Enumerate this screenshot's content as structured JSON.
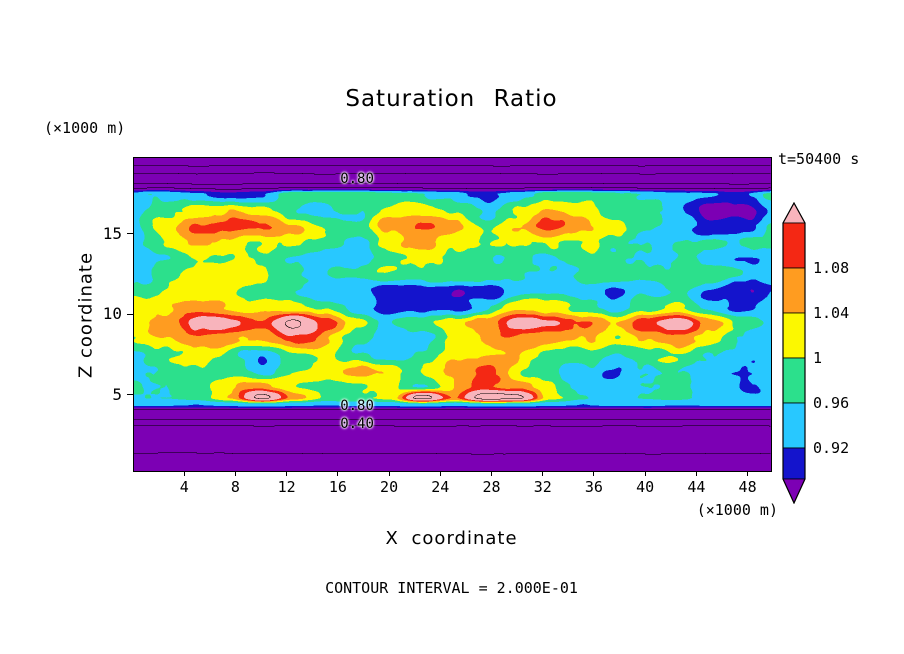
{
  "title": "Saturation Ratio",
  "labels": {
    "z_units": "(×1000 m)",
    "x_units": "(×1000 m)",
    "time": "t=50400 s",
    "x_axis": "X coordinate",
    "z_axis": "Z coordinate",
    "contour_interval": "CONTOUR INTERVAL = 2.000E-01"
  },
  "axes": {
    "x_ticks": [
      4,
      8,
      12,
      16,
      20,
      24,
      28,
      32,
      36,
      40,
      44,
      48
    ],
    "z_ticks": [
      5,
      10,
      15
    ],
    "x_range": [
      0,
      49.75
    ],
    "z_range": [
      0.35,
      19.75
    ]
  },
  "colorbar": {
    "tick_labels": [
      "1.08",
      "1.04",
      "1",
      "0.96",
      "0.92"
    ]
  },
  "contour_labels": [
    {
      "text": "0.80",
      "x": 17.5,
      "z": 18.4
    },
    {
      "text": "0.80",
      "x": 17.5,
      "z": 4.3
    },
    {
      "text": "0.40",
      "x": 17.5,
      "z": 3.2
    }
  ],
  "chart_data": {
    "type": "heatmap",
    "title": "Saturation Ratio",
    "xlabel": "X coordinate (×1000 m)",
    "ylabel": "Z coordinate (×1000 m)",
    "time": "t=50400 s",
    "contour_interval": 0.2,
    "fill_levels": [
      0.88,
      0.92,
      0.96,
      1.0,
      1.04,
      1.08,
      1.12
    ],
    "fill_colors": [
      "#7c00b4",
      "#1414cc",
      "#28c8ff",
      "#2ce08c",
      "#fcf800",
      "#ff9c20",
      "#f42814",
      "#f8b4bc"
    ],
    "line_contour_levels": [
      0.2,
      0.4,
      0.6,
      0.8,
      1.2
    ],
    "x": [
      0,
      2.5,
      5,
      7.5,
      10,
      12.5,
      15,
      17.5,
      20,
      22.5,
      25,
      27.5,
      30,
      32.5,
      35,
      37.5,
      40,
      42.5,
      45,
      47.5,
      50
    ],
    "z": [
      19.6,
      18.5,
      17.5,
      16.5,
      15.5,
      14.5,
      13.5,
      12.5,
      11.5,
      10.5,
      9.5,
      8.5,
      7.5,
      6.5,
      5.6,
      4.9,
      4.45,
      3.9,
      3.0,
      1.8,
      0.4
    ],
    "values": [
      [
        0.12,
        0.12,
        0.12,
        0.12,
        0.12,
        0.12,
        0.12,
        0.12,
        0.12,
        0.12,
        0.12,
        0.12,
        0.12,
        0.12,
        0.12,
        0.12,
        0.12,
        0.12,
        0.12,
        0.12,
        0.12
      ],
      [
        0.45,
        0.46,
        0.44,
        0.45,
        0.47,
        0.45,
        0.43,
        0.45,
        0.46,
        0.44,
        0.45,
        0.46,
        0.45,
        0.44,
        0.46,
        0.45,
        0.44,
        0.45,
        0.46,
        0.45,
        0.45
      ],
      [
        0.96,
        0.97,
        0.93,
        0.9,
        0.92,
        0.97,
        0.98,
        0.97,
        0.96,
        0.97,
        0.95,
        0.93,
        0.97,
        1.0,
        1.01,
        0.99,
        0.97,
        0.96,
        0.93,
        0.91,
        0.95
      ],
      [
        0.97,
        1.0,
        1.03,
        1.05,
        1.02,
        0.99,
        0.97,
        0.96,
        1.0,
        1.03,
        1.01,
        0.98,
        1.02,
        1.05,
        1.03,
        0.99,
        0.97,
        0.94,
        0.89,
        0.88,
        0.93
      ],
      [
        0.98,
        1.04,
        1.09,
        1.1,
        1.08,
        1.05,
        1.0,
        0.98,
        1.04,
        1.08,
        1.06,
        1.0,
        1.05,
        1.09,
        1.07,
        1.02,
        0.98,
        0.96,
        0.92,
        0.9,
        0.96
      ],
      [
        0.97,
        1.0,
        1.04,
        1.03,
        1.0,
        0.98,
        0.96,
        0.94,
        1.0,
        1.03,
        1.0,
        0.97,
        1.0,
        1.02,
        1.0,
        0.98,
        0.96,
        0.97,
        0.98,
        0.97,
        0.96
      ],
      [
        0.96,
        0.97,
        0.98,
        0.99,
        0.98,
        0.96,
        0.93,
        0.92,
        0.96,
        0.98,
        0.97,
        0.96,
        0.97,
        0.98,
        0.97,
        0.96,
        0.97,
        0.96,
        0.95,
        0.93,
        0.95
      ],
      [
        0.97,
        0.98,
        1.0,
        1.01,
        0.99,
        0.97,
        0.95,
        0.94,
        0.96,
        0.95,
        0.96,
        0.97,
        0.98,
        0.97,
        0.96,
        0.95,
        0.96,
        0.97,
        0.96,
        0.94,
        0.96
      ],
      [
        0.97,
        0.99,
        1.01,
        1.0,
        0.98,
        0.97,
        0.95,
        0.92,
        0.89,
        0.86,
        0.87,
        0.9,
        0.95,
        0.93,
        0.9,
        0.89,
        0.94,
        0.96,
        0.92,
        0.89,
        0.9
      ],
      [
        1.0,
        1.02,
        1.04,
        1.03,
        1.02,
        1.03,
        1.0,
        0.95,
        0.91,
        0.89,
        0.92,
        0.97,
        1.02,
        1.0,
        0.96,
        0.93,
        0.98,
        1.02,
        0.96,
        0.91,
        0.92
      ],
      [
        1.02,
        1.06,
        1.16,
        1.14,
        1.08,
        1.22,
        1.1,
        1.02,
        0.98,
        1.0,
        1.05,
        1.1,
        1.17,
        1.14,
        1.06,
        1.02,
        1.12,
        1.16,
        1.08,
        1.0,
        0.96
      ],
      [
        1.0,
        1.04,
        1.08,
        1.06,
        1.04,
        1.08,
        1.05,
        1.0,
        0.96,
        0.98,
        1.02,
        1.06,
        1.09,
        1.07,
        1.02,
        0.99,
        1.04,
        1.06,
        1.02,
        0.96,
        0.94
      ],
      [
        0.97,
        1.0,
        1.02,
        0.99,
        0.95,
        1.0,
        1.02,
        0.98,
        0.94,
        0.97,
        1.0,
        1.02,
        1.04,
        1.0,
        0.96,
        0.94,
        0.97,
        0.99,
        0.96,
        0.93,
        0.92
      ],
      [
        0.96,
        0.98,
        1.0,
        0.97,
        0.95,
        0.99,
        1.04,
        1.07,
        1.04,
        1.0,
        1.04,
        1.06,
        1.02,
        0.98,
        0.94,
        0.92,
        0.93,
        0.96,
        0.94,
        0.92,
        0.93
      ],
      [
        0.95,
        0.97,
        0.99,
        1.02,
        1.05,
        1.0,
        0.98,
        1.02,
        1.04,
        1.0,
        1.05,
        1.08,
        1.06,
        1.02,
        0.97,
        0.94,
        0.96,
        0.98,
        0.95,
        0.93,
        0.94
      ],
      [
        0.96,
        0.97,
        0.98,
        1.04,
        1.22,
        1.05,
        0.99,
        1.0,
        1.02,
        1.24,
        1.08,
        1.24,
        1.22,
        1.02,
        0.97,
        0.95,
        0.96,
        0.97,
        0.95,
        0.94,
        0.94
      ],
      [
        0.93,
        0.93,
        0.92,
        0.93,
        0.94,
        0.93,
        0.92,
        0.93,
        0.93,
        0.94,
        0.93,
        0.94,
        0.94,
        0.93,
        0.92,
        0.93,
        0.93,
        0.92,
        0.93,
        0.93,
        0.93
      ],
      [
        0.72,
        0.72,
        0.72,
        0.72,
        0.72,
        0.72,
        0.72,
        0.72,
        0.72,
        0.72,
        0.72,
        0.72,
        0.72,
        0.72,
        0.72,
        0.72,
        0.72,
        0.72,
        0.72,
        0.72,
        0.72
      ],
      [
        0.38,
        0.38,
        0.38,
        0.38,
        0.38,
        0.38,
        0.38,
        0.38,
        0.38,
        0.38,
        0.38,
        0.38,
        0.38,
        0.38,
        0.38,
        0.38,
        0.38,
        0.38,
        0.38,
        0.38,
        0.38
      ],
      [
        0.22,
        0.22,
        0.22,
        0.22,
        0.22,
        0.22,
        0.22,
        0.22,
        0.22,
        0.22,
        0.22,
        0.22,
        0.22,
        0.22,
        0.22,
        0.22,
        0.22,
        0.22,
        0.22,
        0.22,
        0.22
      ],
      [
        0.1,
        0.1,
        0.1,
        0.1,
        0.1,
        0.1,
        0.1,
        0.1,
        0.1,
        0.1,
        0.1,
        0.1,
        0.1,
        0.1,
        0.1,
        0.1,
        0.1,
        0.1,
        0.1,
        0.1,
        0.1
      ]
    ]
  }
}
